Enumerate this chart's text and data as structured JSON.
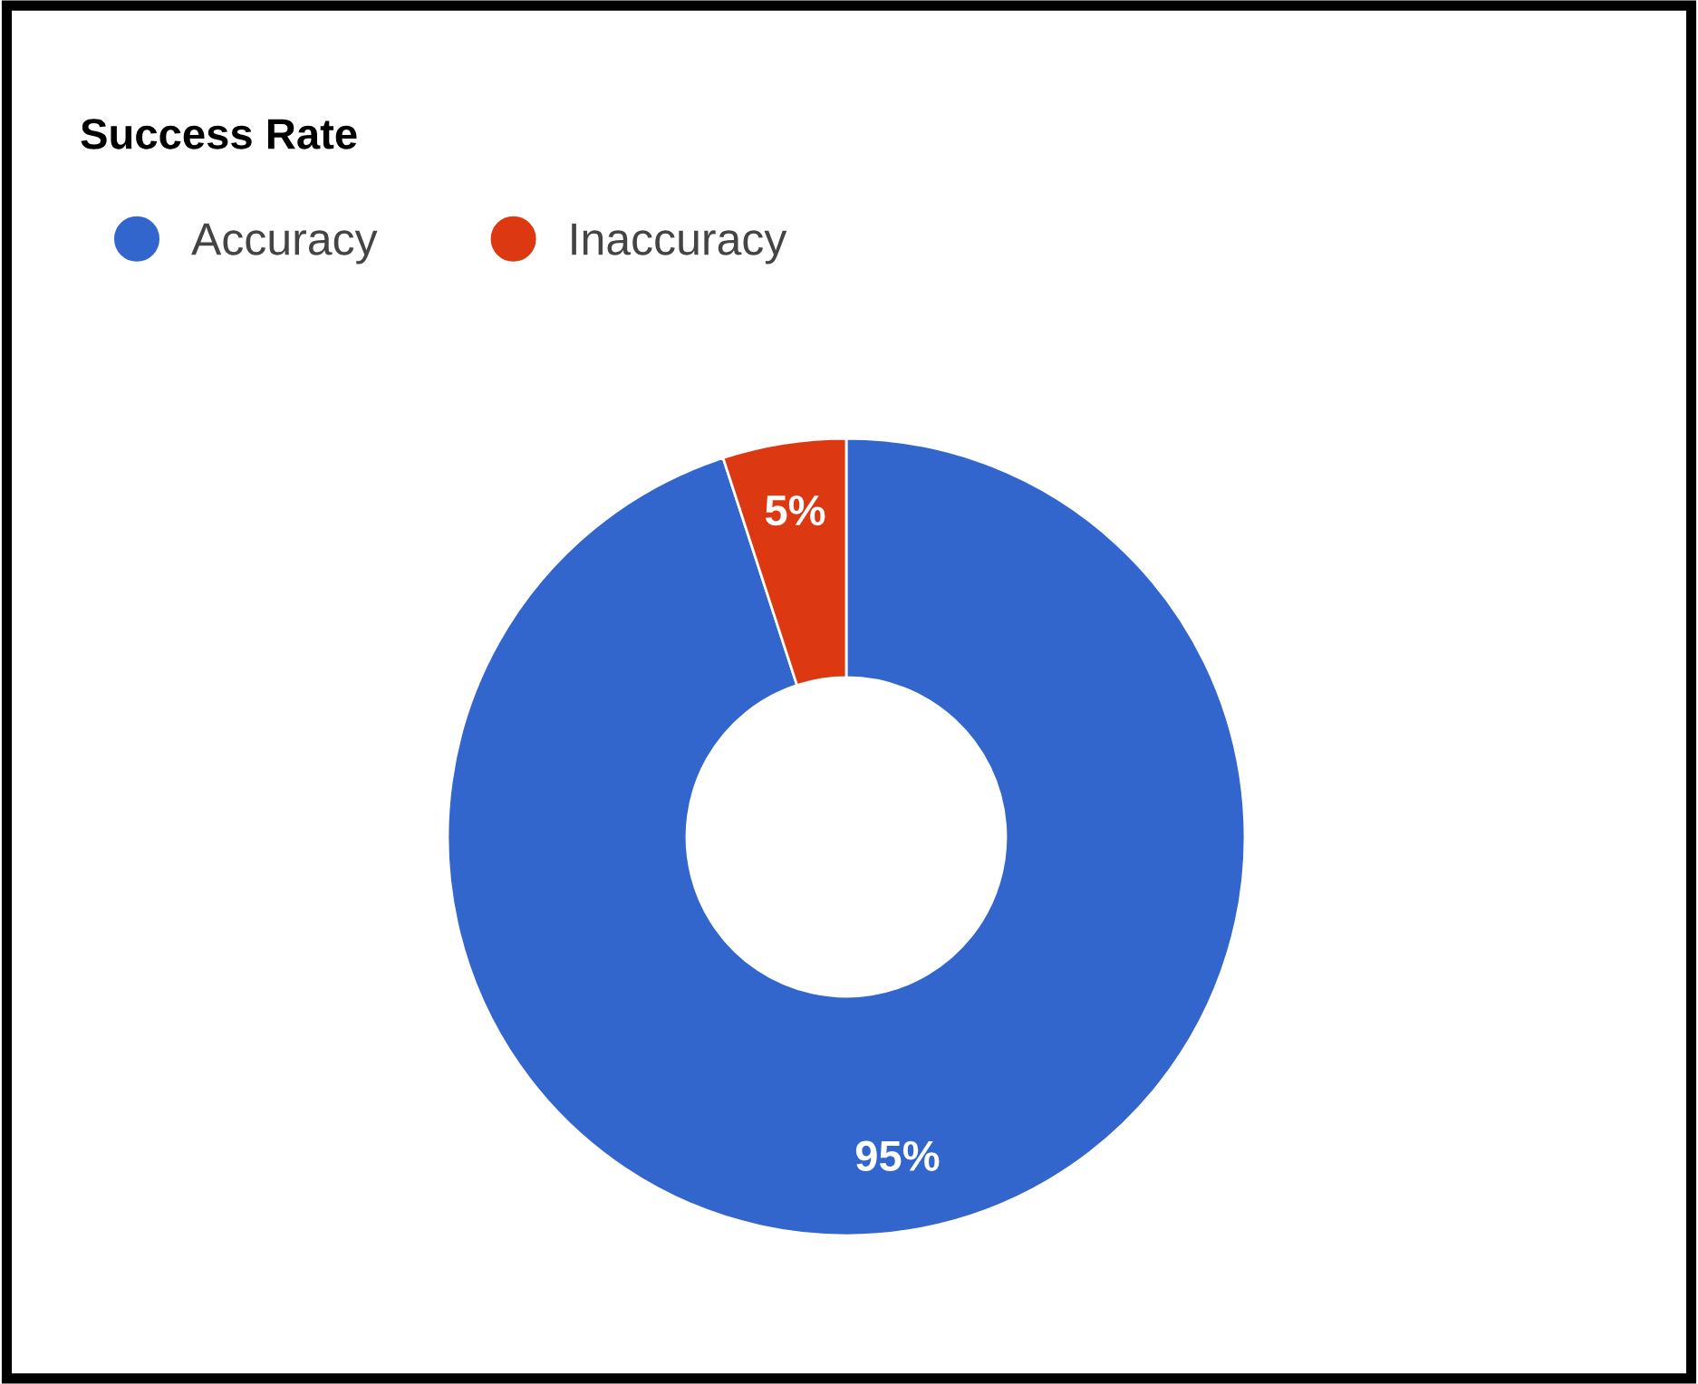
{
  "chart_data": {
    "type": "donut",
    "title": "Success Rate",
    "categories": [
      "Accuracy",
      "Inaccuracy"
    ],
    "values": [
      95,
      5
    ],
    "colors": [
      "#3366cc",
      "#dc3912"
    ],
    "value_labels": [
      "95%",
      "5%"
    ],
    "legend": "top left"
  }
}
